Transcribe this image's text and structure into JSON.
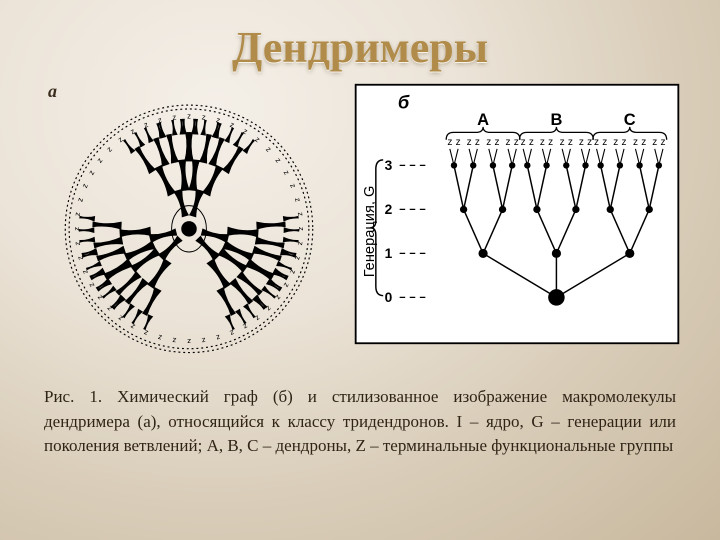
{
  "title": "Дендримеры",
  "panelA": {
    "label": "а",
    "terminal_glyph": "z"
  },
  "panelB": {
    "label": "б",
    "axis_label": "Генерация, G",
    "dendrons": [
      "A",
      "B",
      "C"
    ],
    "generations": [
      0,
      1,
      2,
      3
    ],
    "terminal_glyph": "z",
    "colors": {
      "ink": "#000000",
      "bg": "#ffffff",
      "node": "#000000",
      "dash": "#000000"
    },
    "node_radii": {
      "core": 9,
      "g1": 5,
      "g2": 4,
      "g3": 3.5
    },
    "line_width": 1.6
  },
  "caption": "Рис. 1. Химический граф (б) и стилизованное изображение макромолекулы дендримера (а), относящийся к классу тридендронов. I – ядро, G – генерации или поколения ветвлений; A, B, C – дендроны, Z – терминальные функциональные группы"
}
